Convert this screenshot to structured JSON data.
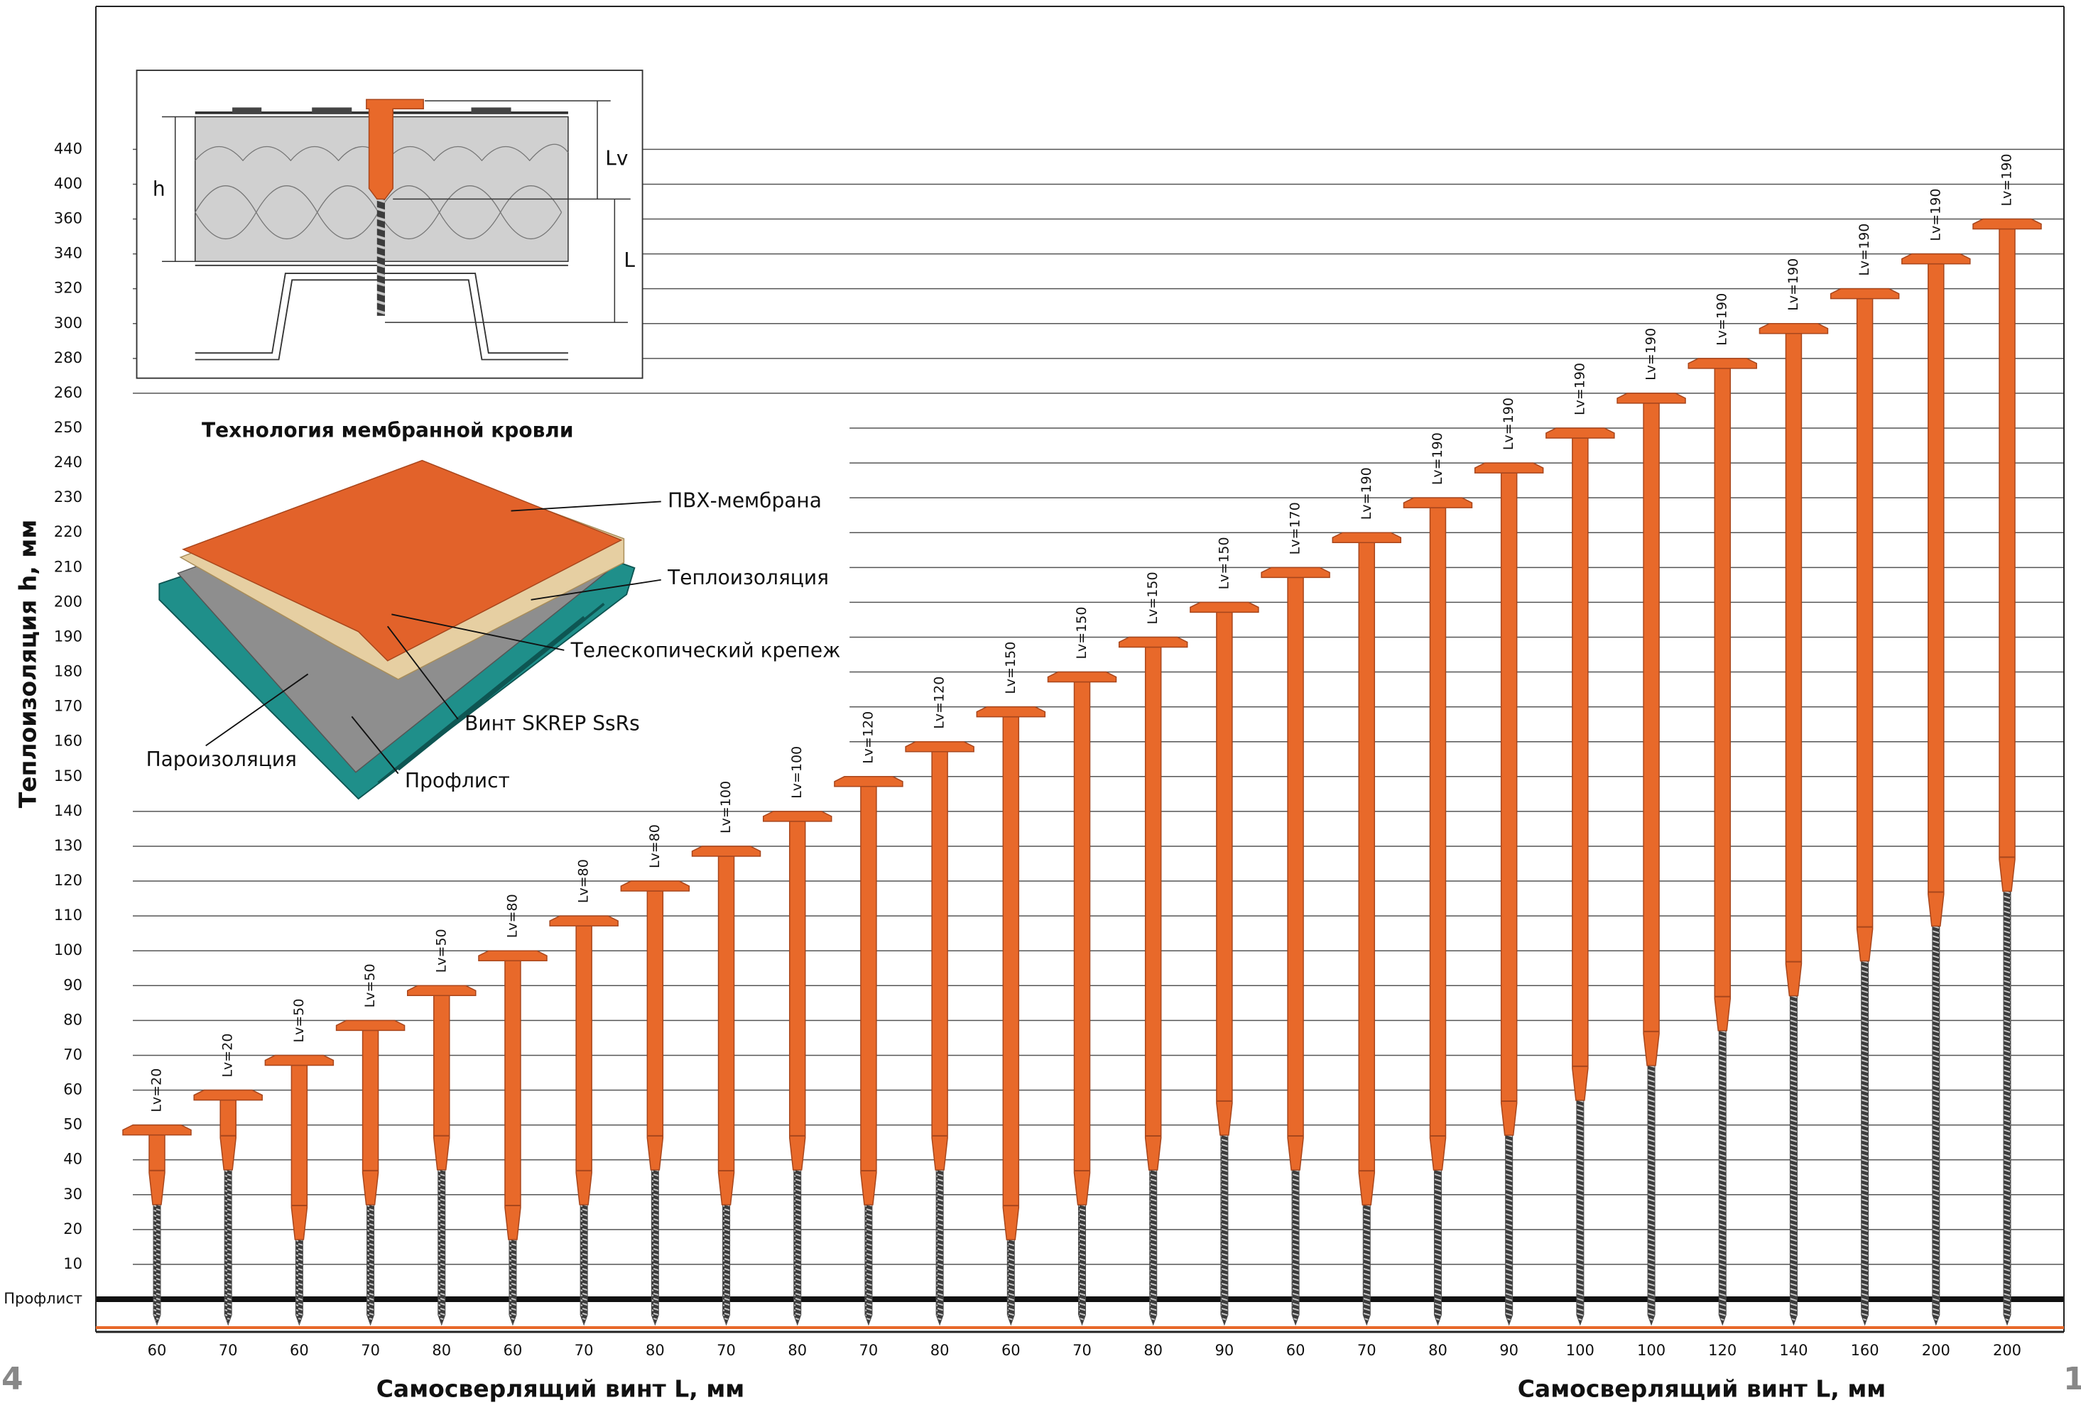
{
  "chart_data": {
    "type": "fastener",
    "ylabel": "Теплоизоляция h, мм",
    "xlabels": [
      "Самосверлящий винт L, мм",
      "Самосверлящий винт L, мм"
    ],
    "categories": [
      60,
      70,
      60,
      70,
      80,
      60,
      70,
      80,
      70,
      80,
      70,
      80,
      60,
      70,
      80,
      90,
      60,
      70,
      80,
      90,
      100,
      100,
      120,
      140,
      160,
      200,
      200
    ],
    "values": [
      50,
      60,
      70,
      80,
      90,
      100,
      110,
      120,
      130,
      140,
      150,
      160,
      170,
      180,
      190,
      200,
      210,
      220,
      230,
      240,
      250,
      260,
      280,
      300,
      320,
      340,
      360
    ],
    "lv": {
      "values": [
        20,
        20,
        50,
        50,
        50,
        80,
        80,
        80,
        100,
        100,
        120,
        120,
        150,
        150,
        150,
        150,
        170,
        190,
        190,
        190,
        190,
        190,
        190,
        190,
        190,
        190,
        190
      ],
      "value_labels": [
        "Lv=20",
        "Lv=20",
        "Lv=50",
        "Lv=50",
        "Lv=50",
        "Lv=80",
        "Lv=80",
        "Lv=80",
        "Lv=100",
        "Lv=100",
        "Lv=120",
        "Lv=120",
        "Lv=150",
        "Lv=150",
        "Lv=150",
        "Lv=150",
        "Lv=170",
        "Lv=190",
        "Lv=190",
        "Lv=190",
        "Lv=190",
        "Lv=190",
        "Lv=190",
        "Lv=190",
        "Lv=190",
        "Lv=190",
        "Lv=190"
      ]
    },
    "yticks": [
      {
        "value": 0,
        "label": "Профлист"
      },
      10,
      20,
      30,
      40,
      50,
      60,
      70,
      80,
      90,
      100,
      110,
      120,
      130,
      140,
      150,
      160,
      170,
      180,
      190,
      200,
      210,
      220,
      230,
      240,
      250,
      260,
      280,
      300,
      320,
      340,
      360,
      400,
      440
    ],
    "grid": true,
    "color": "#e8692a",
    "screw_color": "#4a4a4a"
  },
  "section_diagram": {
    "h": "h",
    "lv": "Lv",
    "l": "L"
  },
  "membrane_diagram": {
    "title": "Технология мембранной кровли",
    "labels": [
      "ПВХ-мембрана",
      "Теплоизоляция",
      "Телескопический крепеж",
      "Винт SKREP SsRs",
      "Пароизоляция",
      "Профлист"
    ]
  },
  "page_numbers": [
    "4",
    "1"
  ]
}
